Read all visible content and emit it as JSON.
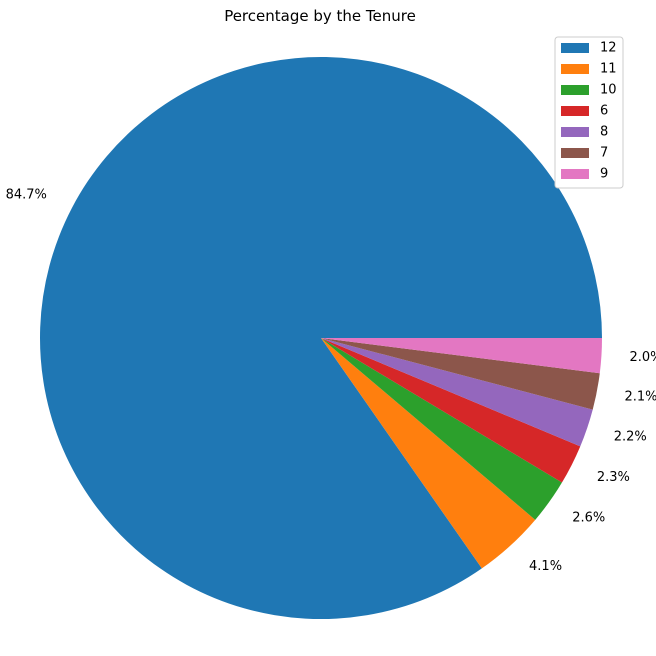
{
  "chart_data": {
    "type": "pie",
    "title": "Percentage by the Tenure",
    "categories": [
      "12",
      "11",
      "10",
      "6",
      "8",
      "7",
      "9"
    ],
    "values": [
      84.7,
      4.1,
      2.6,
      2.3,
      2.2,
      2.1,
      2.0
    ],
    "labels": [
      "84.7%",
      "4.1%",
      "2.6%",
      "2.3%",
      "2.2%",
      "2.1%",
      "2.0%"
    ],
    "colors": [
      "#1f77b4",
      "#ff7f0e",
      "#2ca02c",
      "#d62728",
      "#9467bd",
      "#8c564b",
      "#e377c2"
    ],
    "start_angle_deg": 0,
    "direction": "counterclockwise",
    "legend": {
      "position": "top-right",
      "entries": [
        "12",
        "11",
        "10",
        "6",
        "8",
        "7",
        "9"
      ]
    }
  }
}
